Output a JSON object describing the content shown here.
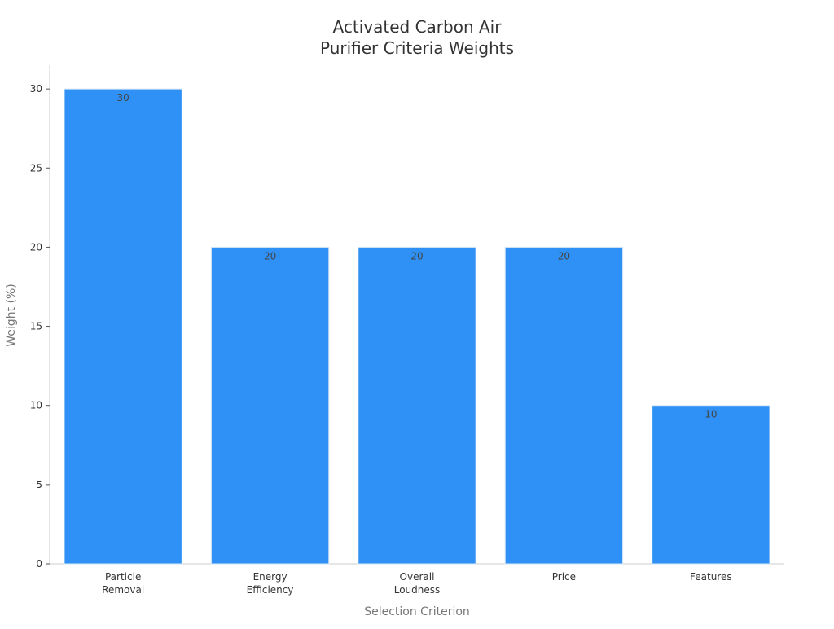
{
  "chart_data": {
    "type": "bar",
    "title": [
      "Activated Carbon Air",
      "Purifier Criteria Weights"
    ],
    "xlabel": "Selection Criterion",
    "ylabel": "Weight (%)",
    "categories": [
      [
        "Particle",
        "Removal"
      ],
      [
        "Energy",
        "Efficiency"
      ],
      [
        "Overall",
        "Loudness"
      ],
      [
        "Price"
      ],
      [
        "Features"
      ]
    ],
    "values": [
      30,
      20,
      20,
      20,
      10
    ],
    "ylim": [
      0,
      31.5
    ],
    "yticks": [
      0,
      5,
      10,
      15,
      20,
      25,
      30
    ],
    "bar_color": "#2f91f6",
    "axis_color": "#cccccc",
    "grid": false,
    "legend": "none"
  }
}
